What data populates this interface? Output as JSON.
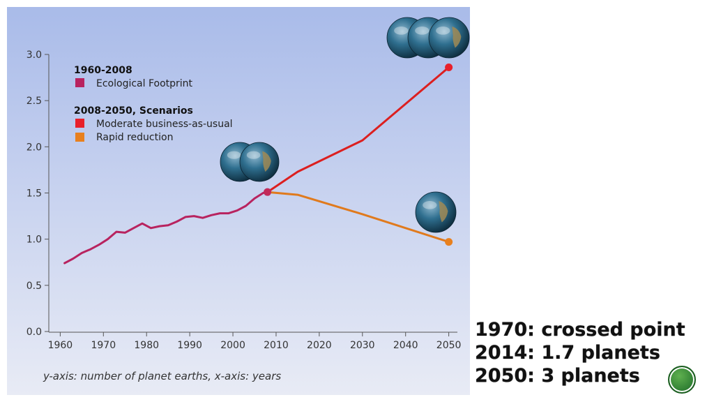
{
  "chart_data": {
    "type": "line",
    "xlim": [
      1958,
      2052
    ],
    "ylim": [
      0,
      3.0
    ],
    "x_ticks": [
      1960,
      1970,
      1980,
      1990,
      2000,
      2010,
      2020,
      2030,
      2040,
      2050
    ],
    "y_ticks": [
      "0.0",
      "0.5",
      "1.0",
      "1.5",
      "2.0",
      "2.5",
      "3.0"
    ],
    "legend": {
      "group1_heading": "1960-2008",
      "group2_heading": "2008-2050, Scenarios"
    },
    "series": [
      {
        "name": "Ecological Footprint",
        "color": "#b8235f",
        "x": [
          1961,
          1963,
          1965,
          1967,
          1969,
          1971,
          1973,
          1975,
          1977,
          1979,
          1981,
          1983,
          1985,
          1987,
          1989,
          1991,
          1993,
          1995,
          1997,
          1999,
          2001,
          2003,
          2005,
          2007,
          2008
        ],
        "y": [
          0.74,
          0.79,
          0.85,
          0.89,
          0.94,
          1.0,
          1.08,
          1.07,
          1.12,
          1.17,
          1.12,
          1.14,
          1.15,
          1.19,
          1.24,
          1.25,
          1.23,
          1.26,
          1.28,
          1.28,
          1.31,
          1.36,
          1.44,
          1.5,
          1.51
        ]
      },
      {
        "name": "Moderate business-as-usual",
        "color": "#dc1f1f",
        "x": [
          2008,
          2015,
          2030,
          2050
        ],
        "y": [
          1.51,
          1.73,
          2.07,
          2.86
        ]
      },
      {
        "name": "Rapid reduction",
        "color": "#e07a1d",
        "x": [
          2008,
          2015,
          2030,
          2050
        ],
        "y": [
          1.51,
          1.48,
          1.27,
          0.97
        ]
      }
    ],
    "endpoint_markers": [
      {
        "x": 2008,
        "y": 1.51,
        "color": "#c22a5a"
      },
      {
        "x": 2050,
        "y": 2.86,
        "color": "#e8202a"
      },
      {
        "x": 2050,
        "y": 0.97,
        "color": "#e8801e"
      }
    ],
    "caption": "y-axis: number of planet earths, x-axis: years"
  },
  "side_notes": [
    "1970: crossed point",
    "2014: 1.7 planets",
    "2050: 3 planets"
  ]
}
